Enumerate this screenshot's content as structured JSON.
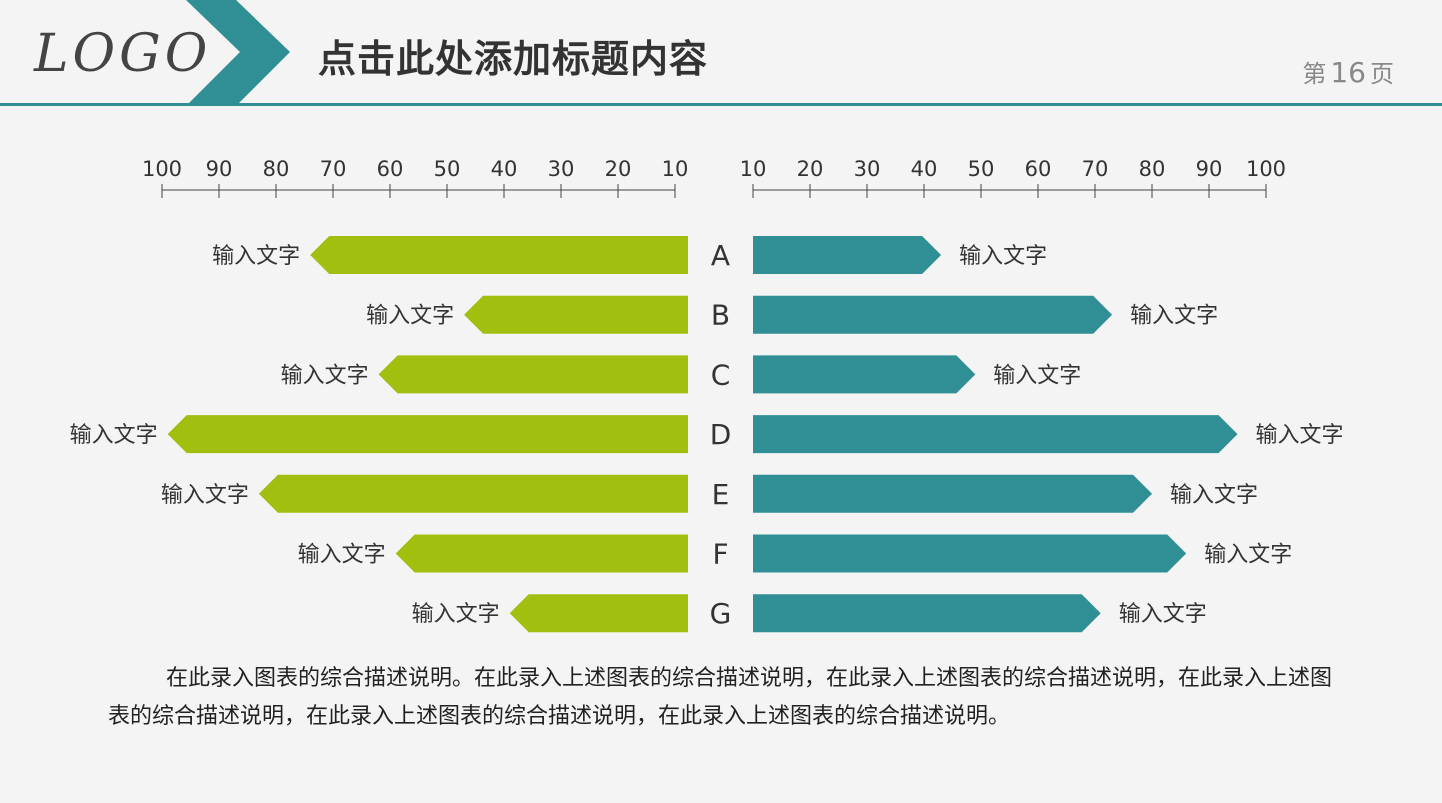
{
  "header": {
    "logo": "LOGO",
    "title": "点击此处添加标题内容",
    "page_prefix": "第",
    "page_number": "16",
    "page_suffix": "页"
  },
  "colors": {
    "left_bar": "#a0bf0f",
    "right_bar": "#2f8f94",
    "accent": "#2f8f94",
    "axis": "#444444",
    "text": "#333333"
  },
  "chart_data": {
    "type": "bar",
    "layout": "butterfly",
    "categories": [
      "A",
      "B",
      "C",
      "D",
      "E",
      "F",
      "G"
    ],
    "axis_ticks_left": [
      100,
      90,
      80,
      70,
      60,
      50,
      40,
      30,
      20,
      10
    ],
    "axis_ticks_right": [
      10,
      20,
      30,
      40,
      50,
      60,
      70,
      80,
      90,
      100
    ],
    "xlim": [
      10,
      100
    ],
    "series": [
      {
        "side": "left",
        "values": [
          74,
          47,
          62,
          99,
          83,
          59,
          39
        ],
        "labels": [
          "输入文字",
          "输入文字",
          "输入文字",
          "输入文字",
          "输入文字",
          "输入文字",
          "输入文字"
        ]
      },
      {
        "side": "right",
        "values": [
          43,
          73,
          49,
          95,
          80,
          86,
          71
        ],
        "labels": [
          "输入文字",
          "输入文字",
          "输入文字",
          "输入文字",
          "输入文字",
          "输入文字",
          "输入文字"
        ]
      }
    ]
  },
  "description": "在此录入图表的综合描述说明。在此录入上述图表的综合描述说明，在此录入上述图表的综合描述说明，在此录入上述图表的综合描述说明，在此录入上述图表的综合描述说明，在此录入上述图表的综合描述说明。"
}
